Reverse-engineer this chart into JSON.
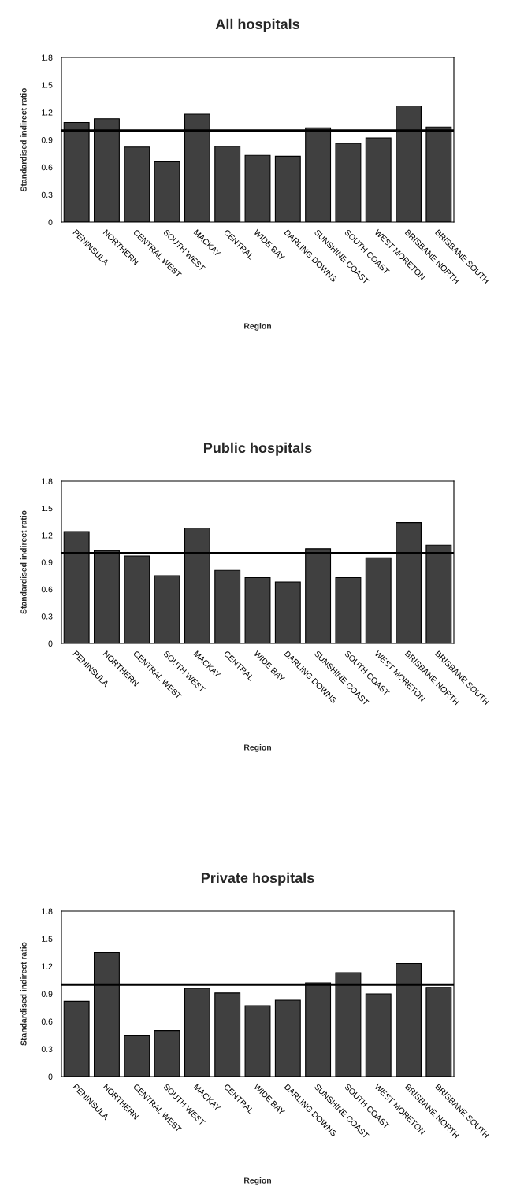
{
  "chart_data": [
    {
      "type": "bar",
      "title": "All hospitals",
      "xlabel": "Region",
      "ylabel": "Standardised indirect ratio",
      "categories": [
        "PENINSULA",
        "NORTHERN",
        "CENTRAL WEST",
        "SOUTH WEST",
        "MACKAY",
        "CENTRAL",
        "WIDE BAY",
        "DARLING DOWNS",
        "SUNSHINE COAST",
        "SOUTH COAST",
        "WEST MORETON",
        "BRISBANE NORTH",
        "BRISBANE SOUTH"
      ],
      "values": [
        1.09,
        1.13,
        0.82,
        0.66,
        1.18,
        0.83,
        0.73,
        0.72,
        1.03,
        0.86,
        0.92,
        1.27,
        1.04
      ],
      "color": "#404040",
      "ylim": [
        0,
        1.8
      ],
      "yticks": [
        0,
        0.3,
        0.6,
        0.9,
        1.2,
        1.5,
        1.8
      ],
      "ref_lines": [
        {
          "axis": "y",
          "value": 1.0,
          "color": "#000000"
        }
      ]
    },
    {
      "type": "bar",
      "title": "Public hospitals",
      "xlabel": "Region",
      "ylabel": "Standardised indirect ratio",
      "categories": [
        "PENINSULA",
        "NORTHERN",
        "CENTRAL WEST",
        "SOUTH WEST",
        "MACKAY",
        "CENTRAL",
        "WIDE BAY",
        "DARLING DOWNS",
        "SUNSHINE COAST",
        "SOUTH COAST",
        "WEST MORETON",
        "BRISBANE NORTH",
        "BRISBANE SOUTH"
      ],
      "values": [
        1.24,
        1.03,
        0.97,
        0.75,
        1.28,
        0.81,
        0.73,
        0.68,
        1.05,
        0.73,
        0.95,
        1.34,
        1.09
      ],
      "color": "#404040",
      "ylim": [
        0,
        1.8
      ],
      "yticks": [
        0,
        0.3,
        0.6,
        0.9,
        1.2,
        1.5,
        1.8
      ],
      "ref_lines": [
        {
          "axis": "y",
          "value": 1.0,
          "color": "#000000"
        }
      ]
    },
    {
      "type": "bar",
      "title": "Private hospitals",
      "xlabel": "Region",
      "ylabel": "Standardised indirect ratio",
      "categories": [
        "PENINSULA",
        "NORTHERN",
        "CENTRAL WEST",
        "SOUTH WEST",
        "MACKAY",
        "CENTRAL",
        "WIDE BAY",
        "DARLING DOWNS",
        "SUNSHINE COAST",
        "SOUTH COAST",
        "WEST MORETON",
        "BRISBANE NORTH",
        "BRISBANE SOUTH"
      ],
      "values": [
        0.82,
        1.35,
        0.45,
        0.5,
        0.96,
        0.91,
        0.77,
        0.83,
        1.02,
        1.13,
        0.9,
        1.23,
        0.97
      ],
      "color": "#404040",
      "ylim": [
        0,
        1.8
      ],
      "yticks": [
        0,
        0.3,
        0.6,
        0.9,
        1.2,
        1.5,
        1.8
      ],
      "ref_lines": [
        {
          "axis": "y",
          "value": 1.0,
          "color": "#000000"
        }
      ]
    }
  ]
}
